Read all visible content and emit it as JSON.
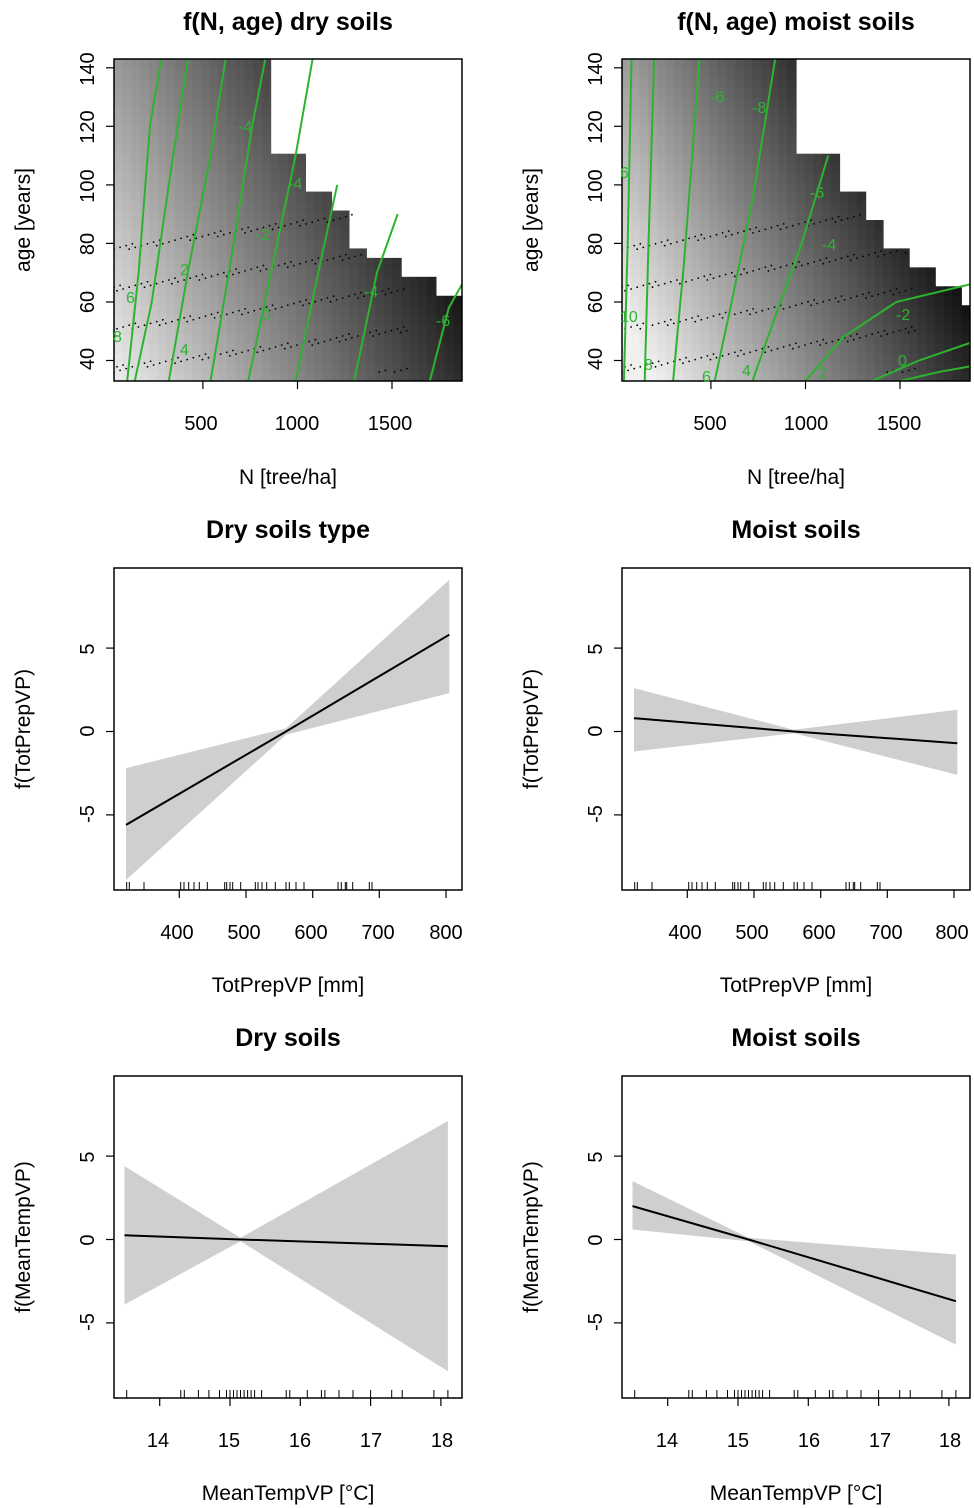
{
  "figure": {
    "panels": [
      {
        "title": "f(N, age) dry soils",
        "xlabel": "N [tree/ha]",
        "ylabel": "age [years]",
        "xticks": [
          "500",
          "1000",
          "1500"
        ],
        "yticks": [
          "40",
          "60",
          "80",
          "100",
          "120",
          "140"
        ],
        "contour_labels": [
          "8",
          "6",
          "4",
          "2",
          "0",
          "-2",
          "-4",
          "-4",
          "-4",
          "-6"
        ]
      },
      {
        "title": "f(N, age) moist soils",
        "xlabel": "N [tree/ha]",
        "ylabel": "age [years]",
        "xticks": [
          "500",
          "1000",
          "1500"
        ],
        "yticks": [
          "40",
          "60",
          "80",
          "100",
          "120",
          "140"
        ],
        "contour_labels": [
          "10",
          "8",
          "6",
          "6",
          "4",
          "2",
          "0",
          "-2",
          "-4",
          "-6",
          "-6",
          "-8"
        ]
      },
      {
        "title": "Dry soils type",
        "xlabel": "TotPrepVP [mm]",
        "ylabel": "f(TotPrepVP)",
        "xticks": [
          "400",
          "500",
          "600",
          "700",
          "800"
        ],
        "yticks": [
          "-5",
          "0",
          "5"
        ]
      },
      {
        "title": "Moist soils",
        "xlabel": "TotPrepVP [mm]",
        "ylabel": "f(TotPrepVP)",
        "xticks": [
          "400",
          "500",
          "600",
          "700",
          "800"
        ],
        "yticks": [
          "-5",
          "0",
          "5"
        ]
      },
      {
        "title": "Dry soils",
        "xlabel": "MeanTempVP [°C]",
        "ylabel": "f(MeanTempVP)",
        "xticks": [
          "14",
          "15",
          "16",
          "17",
          "18"
        ],
        "yticks": [
          "-5",
          "0",
          "5"
        ]
      },
      {
        "title": "Moist soils",
        "xlabel": "MeanTempVP [°C]",
        "ylabel": "f(MeanTempVP)",
        "xticks": [
          "14",
          "15",
          "16",
          "17",
          "18"
        ],
        "yticks": [
          "-5",
          "0",
          "5"
        ]
      }
    ]
  },
  "chart_data": [
    {
      "type": "heatmap",
      "title": "f(N, age) dry soils",
      "xlabel": "N [tree/ha]",
      "ylabel": "age [years]",
      "xlim": [
        30,
        1870
      ],
      "ylim": [
        33,
        143
      ],
      "colors": {
        "low": "#000000",
        "high": "#f0f0f0",
        "contour": "#2db42d"
      },
      "surface": {
        "base": 12.0,
        "n_coef": -0.0083,
        "age_coef": -0.06
      },
      "coverage_upper_age": [
        [
          30,
          143
        ],
        [
          880,
          143
        ],
        [
          880,
          112
        ],
        [
          1020,
          112
        ],
        [
          1020,
          99
        ],
        [
          1160,
          99
        ],
        [
          1160,
          91
        ],
        [
          1290,
          91
        ],
        [
          1290,
          78
        ],
        [
          1360,
          78
        ],
        [
          1360,
          75
        ],
        [
          1540,
          75
        ],
        [
          1540,
          68
        ],
        [
          1720,
          68
        ],
        [
          1720,
          62
        ],
        [
          1870,
          62
        ]
      ],
      "contours": [
        {
          "level": 8,
          "points": [
            [
              100,
              33
            ],
            [
              160,
              70
            ],
            [
              220,
              120
            ],
            [
              280,
              143
            ]
          ]
        },
        {
          "level": 6,
          "points": [
            [
              140,
              33
            ],
            [
              230,
              60
            ],
            [
              320,
              100
            ],
            [
              420,
              143
            ]
          ]
        },
        {
          "level": 4,
          "points": [
            [
              320,
              33
            ],
            [
              420,
              70
            ],
            [
              540,
              110
            ],
            [
              620,
              143
            ]
          ]
        },
        {
          "level": 2,
          "points": [
            [
              540,
              33
            ],
            [
              650,
              75
            ],
            [
              760,
              120
            ],
            [
              830,
              143
            ]
          ]
        },
        {
          "level": 0,
          "points": [
            [
              740,
              33
            ],
            [
              860,
              70
            ],
            [
              990,
              110
            ],
            [
              1080,
              143
            ]
          ]
        },
        {
          "level": -2,
          "points": [
            [
              990,
              33
            ],
            [
              1110,
              70
            ],
            [
              1210,
              100
            ]
          ]
        },
        {
          "level": -4,
          "points": [
            [
              1300,
              33
            ],
            [
              1420,
              70
            ],
            [
              1530,
              90
            ]
          ]
        },
        {
          "level": -6,
          "points": [
            [
              1700,
              33
            ],
            [
              1800,
              58
            ],
            [
              1870,
              66
            ]
          ]
        }
      ],
      "contour_label_levels": [
        "8",
        "6",
        "4",
        "2",
        "0",
        "-2",
        "-4",
        "-4",
        "-4",
        "-6"
      ]
    },
    {
      "type": "heatmap",
      "title": "f(N, age) moist soils",
      "xlabel": "N [tree/ha]",
      "ylabel": "age [years]",
      "xlim": [
        30,
        1870
      ],
      "ylim": [
        33,
        143
      ],
      "colors": {
        "low": "#000000",
        "high": "#f0f0f0",
        "contour": "#2db42d"
      },
      "surface": {
        "base": 14.5,
        "n_coef": -0.0095,
        "age_coef": -0.075
      },
      "coverage_upper_age": [
        [
          30,
          143
        ],
        [
          950,
          143
        ],
        [
          950,
          110
        ],
        [
          1200,
          110
        ],
        [
          1200,
          97
        ],
        [
          1300,
          97
        ],
        [
          1300,
          88
        ],
        [
          1420,
          88
        ],
        [
          1420,
          78
        ],
        [
          1560,
          78
        ],
        [
          1560,
          71
        ],
        [
          1700,
          71
        ],
        [
          1700,
          64
        ],
        [
          1820,
          64
        ],
        [
          1820,
          58
        ],
        [
          1870,
          58
        ]
      ],
      "contours": [
        {
          "level": 10,
          "points": [
            [
              40,
              33
            ],
            [
              60,
              80
            ],
            [
              80,
              143
            ]
          ]
        },
        {
          "level": 8,
          "points": [
            [
              150,
              33
            ],
            [
              170,
              80
            ],
            [
              200,
              143
            ]
          ]
        },
        {
          "level": 6,
          "points": [
            [
              300,
              33
            ],
            [
              360,
              75
            ],
            [
              440,
              143
            ]
          ]
        },
        {
          "level": 4,
          "points": [
            [
              520,
              33
            ],
            [
              610,
              60
            ],
            [
              720,
              95
            ],
            [
              840,
              143
            ]
          ]
        },
        {
          "level": 2,
          "points": [
            [
              720,
              33
            ],
            [
              840,
              55
            ],
            [
              980,
              80
            ],
            [
              1120,
              110
            ]
          ]
        },
        {
          "level": 0,
          "points": [
            [
              1000,
              33
            ],
            [
              1200,
              48
            ],
            [
              1480,
              60
            ],
            [
              1870,
              66
            ]
          ]
        },
        {
          "level": -2,
          "points": [
            [
              1350,
              33
            ],
            [
              1600,
              40
            ],
            [
              1870,
              46
            ]
          ]
        },
        {
          "level": -4,
          "points": [
            [
              1500,
              33
            ],
            [
              1700,
              36
            ],
            [
              1870,
              38
            ]
          ]
        }
      ],
      "contour_label_levels": [
        "10",
        "8",
        "6",
        "6",
        "4",
        "2",
        "0",
        "-2",
        "-4",
        "-6",
        "-6",
        "-8"
      ]
    },
    {
      "type": "line",
      "title": "Dry soils type",
      "xlabel": "TotPrepVP [mm]",
      "ylabel": "f(TotPrepVP)",
      "xlim": [
        302,
        824
      ],
      "ylim": [
        -9.5,
        9.8
      ],
      "x": [
        320,
        560,
        805
      ],
      "fit": [
        -5.6,
        0.0,
        5.8
      ],
      "ci_lower": [
        -8.9,
        -0.2,
        2.3
      ],
      "ci_upper": [
        -2.2,
        0.2,
        9.1
      ],
      "rug": [
        321,
        325,
        347,
        402,
        407,
        414,
        422,
        430,
        442,
        468,
        471,
        476,
        480,
        492,
        514,
        518,
        524,
        531,
        544,
        560,
        565,
        575,
        587,
        638,
        643,
        649,
        651,
        660,
        685,
        689
      ]
    },
    {
      "type": "line",
      "title": "Moist soils",
      "xlabel": "TotPrepVP [mm]",
      "ylabel": "f(TotPrepVP)",
      "xlim": [
        302,
        824
      ],
      "ylim": [
        -9.5,
        9.8
      ],
      "x": [
        320,
        560,
        805
      ],
      "fit": [
        0.8,
        0.0,
        -0.7
      ],
      "ci_lower": [
        -1.2,
        -0.1,
        -2.6
      ],
      "ci_upper": [
        2.6,
        0.1,
        1.3
      ],
      "rug": [
        321,
        325,
        347,
        402,
        407,
        414,
        422,
        430,
        442,
        468,
        471,
        476,
        480,
        492,
        514,
        518,
        524,
        531,
        544,
        560,
        565,
        575,
        587,
        638,
        643,
        649,
        651,
        660,
        685,
        689
      ]
    },
    {
      "type": "line",
      "title": "Dry soils",
      "xlabel": "MeanTempVP [°C]",
      "ylabel": "f(MeanTempVP)",
      "xlim": [
        13.35,
        18.3
      ],
      "ylim": [
        -9.5,
        9.8
      ],
      "x": [
        13.5,
        15.15,
        18.1
      ],
      "fit": [
        0.25,
        0.0,
        -0.4
      ],
      "ci_lower": [
        -3.9,
        -0.1,
        -7.9
      ],
      "ci_upper": [
        4.4,
        0.1,
        7.1
      ],
      "rug": [
        13.53,
        14.3,
        14.35,
        14.55,
        14.7,
        14.85,
        14.95,
        15.0,
        15.05,
        15.1,
        15.15,
        15.2,
        15.25,
        15.3,
        15.35,
        15.45,
        15.8,
        15.85,
        16.1,
        16.3,
        16.35,
        16.55,
        16.75,
        17.0,
        17.3,
        17.45,
        17.9,
        18.1
      ]
    },
    {
      "type": "line",
      "title": "Moist soils",
      "xlabel": "MeanTempVP [°C]",
      "ylabel": "f(MeanTempVP)",
      "xlim": [
        13.35,
        18.3
      ],
      "ylim": [
        -9.5,
        9.8
      ],
      "x": [
        13.5,
        15.15,
        18.1
      ],
      "fit": [
        2.0,
        0.0,
        -3.7
      ],
      "ci_lower": [
        0.6,
        -0.1,
        -6.3
      ],
      "ci_upper": [
        3.5,
        0.1,
        -0.9
      ],
      "rug": [
        13.53,
        14.3,
        14.35,
        14.55,
        14.7,
        14.85,
        14.95,
        15.0,
        15.05,
        15.1,
        15.15,
        15.2,
        15.25,
        15.3,
        15.35,
        15.45,
        15.8,
        15.85,
        16.1,
        16.3,
        16.35,
        16.55,
        16.75,
        17.0,
        17.3,
        17.45,
        17.9,
        18.1
      ]
    }
  ]
}
